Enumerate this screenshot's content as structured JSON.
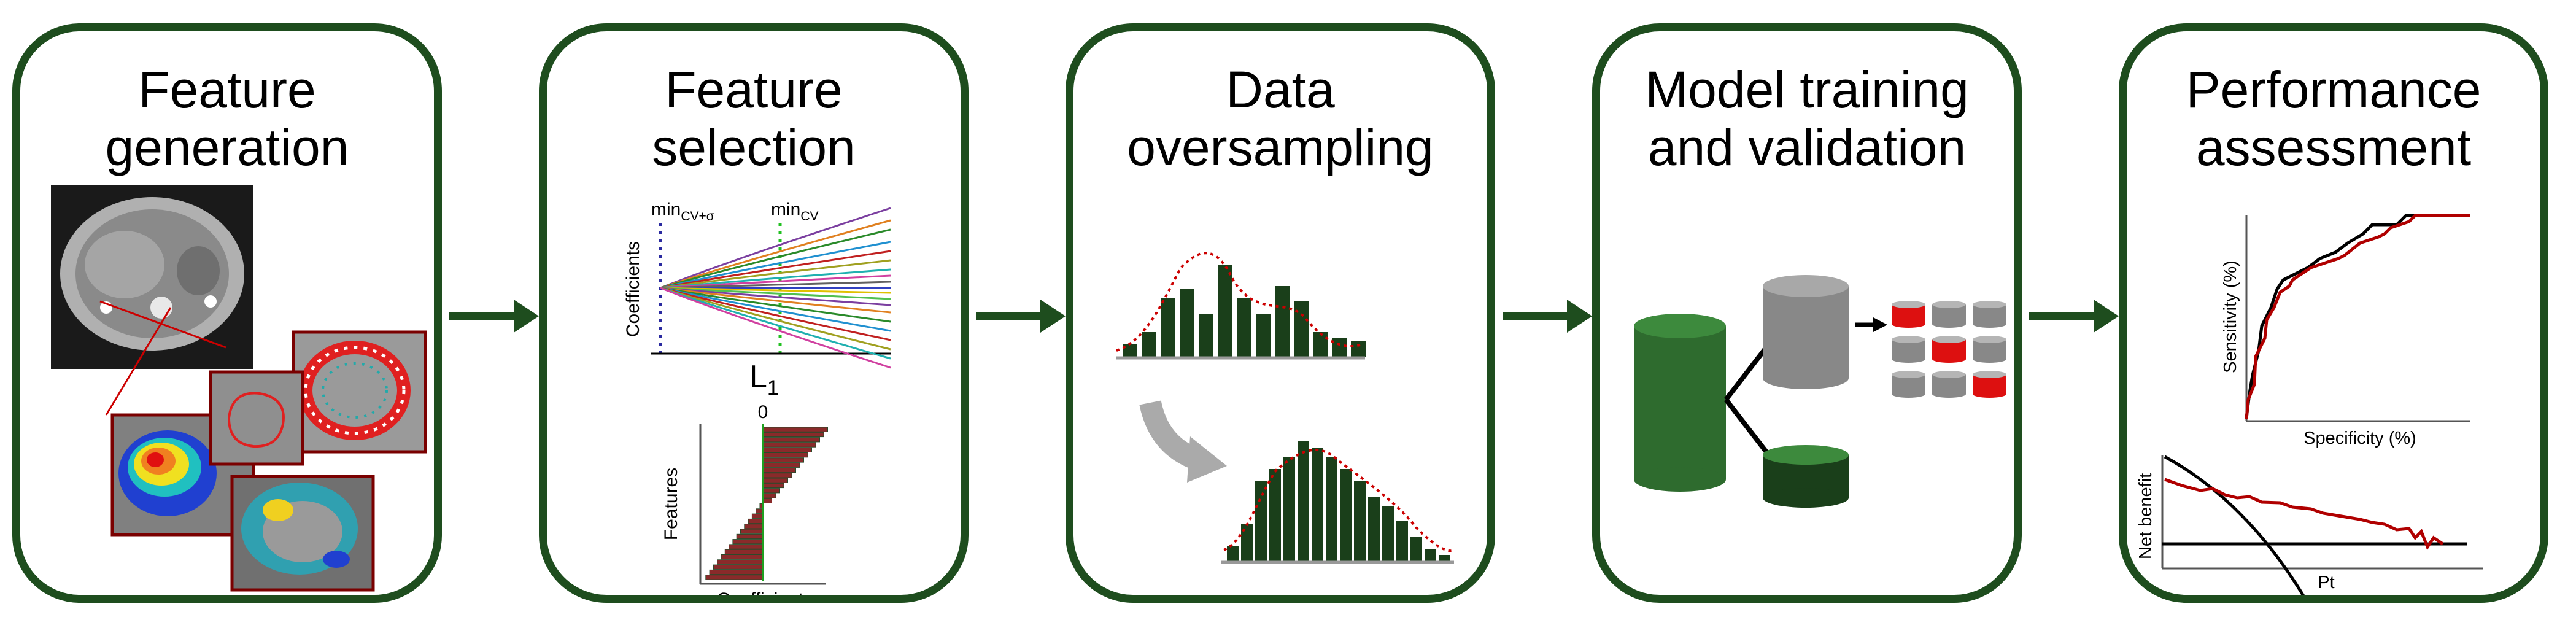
{
  "panels": [
    {
      "title_line1": "Feature",
      "title_line2": "generation"
    },
    {
      "title_line1": "Feature",
      "title_line2": "selection"
    },
    {
      "title_line1": "Data",
      "title_line2": "oversampling"
    },
    {
      "title_line1": "Model training",
      "title_line2": "and validation"
    },
    {
      "title_line1": "Performance",
      "title_line2": "assessment"
    }
  ],
  "selection": {
    "coef_ylabel": "Coefficients",
    "l1_label": "L",
    "l1_sub": "1",
    "min1_base": "min",
    "min1_sub": "CV+σ",
    "min2_base": "min",
    "min2_sub": "CV",
    "bar_zero": "0",
    "bar_ylabel": "Features",
    "bar_xlabel": "Coefficients"
  },
  "performance": {
    "roc_ylabel": "Sensitivity (%)",
    "roc_xlabel": "Specificity (%)",
    "dca_ylabel": "Net benefit",
    "dca_xlabel": "Pt"
  },
  "colors": {
    "border": "#1e4d1e",
    "bar_fill": "#1a3f1a",
    "highlight_red": "#cc0000",
    "cylinder_green": "#2e6b2e",
    "cylinder_gray": "#8a8a8a"
  }
}
